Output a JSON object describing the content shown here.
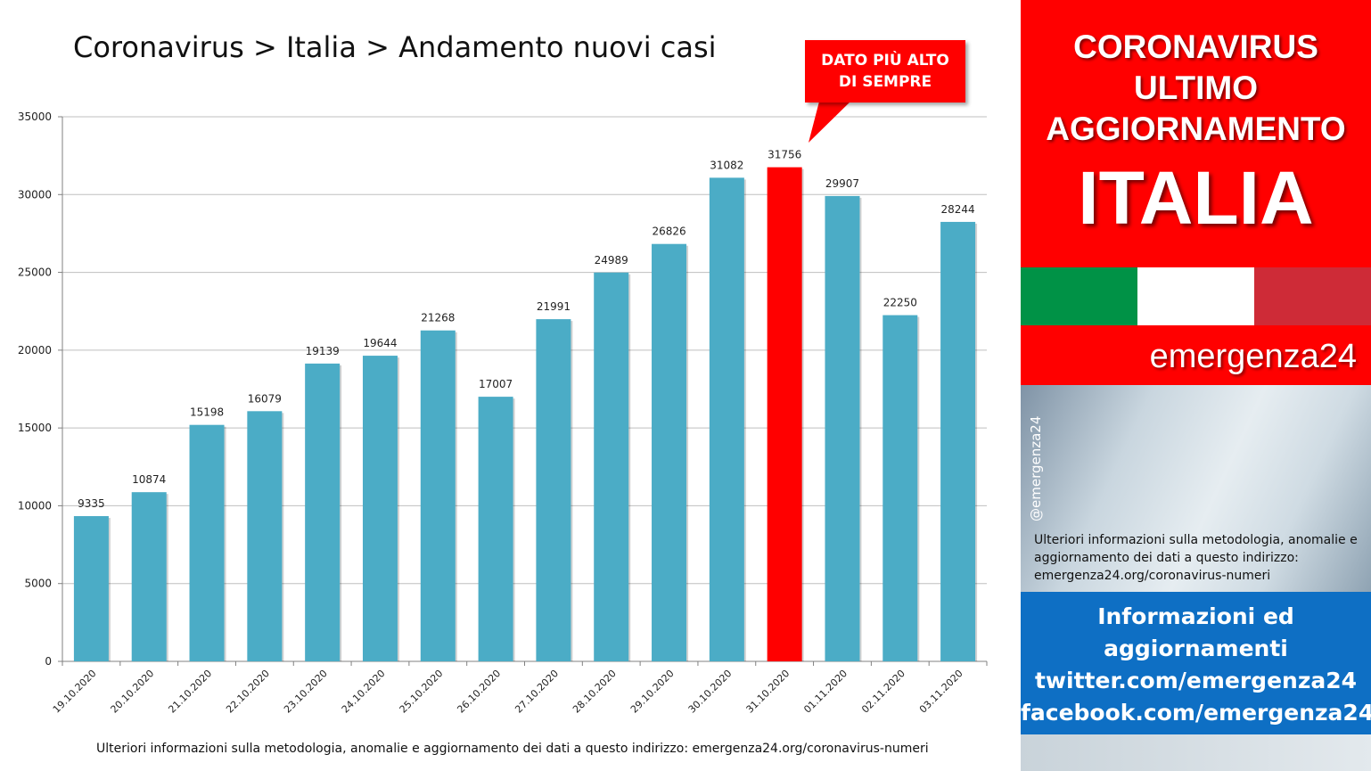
{
  "title": "Coronavirus > Italia > Andamento nuovi casi",
  "callout": {
    "line1": "DATO PIÙ ALTO",
    "line2": "DI SEMPRE"
  },
  "footnote": "Ulteriori informazioni sulla metodologia, anomalie e aggiornamento dei dati a questo indirizzo: emergenza24.org/coronavirus-numeri",
  "chart_data": {
    "type": "bar",
    "categories": [
      "19.10.2020",
      "20.10.2020",
      "21.10.2020",
      "22.10.2020",
      "23.10.2020",
      "24.10.2020",
      "25.10.2020",
      "26.10.2020",
      "27.10.2020",
      "28.10.2020",
      "29.10.2020",
      "30.10.2020",
      "31.10.2020",
      "01.11.2020",
      "02.11.2020",
      "03.11.2020"
    ],
    "values": [
      9335,
      10874,
      15198,
      16079,
      19139,
      19644,
      21268,
      17007,
      21991,
      24989,
      26826,
      31082,
      31756,
      29907,
      22250,
      28244
    ],
    "highlight_category": "31.10.2020",
    "ylim": [
      0,
      35000
    ],
    "yticks": [
      0,
      5000,
      10000,
      15000,
      20000,
      25000,
      30000,
      35000
    ],
    "grid": true,
    "bar_color": "#4bacc6",
    "highlight_color": "#ff0000"
  },
  "panel": {
    "header_lines": [
      "CORONAVIRUS",
      "ULTIMO",
      "AGGIORNAMENTO"
    ],
    "country": "ITALIA",
    "brand": "emergenza24",
    "handle": "@emergenza24",
    "info": "Ulteriori informazioni sulla metodologia, anomalie e aggiornamento dei dati a questo indirizzo: emergenza24.org/coronavirus-numeri",
    "social_lines": [
      "Informazioni ed",
      "aggiornamenti",
      "twitter.com/emergenza24",
      "facebook.com/emergenza24"
    ],
    "colors": {
      "red": "#ff0000",
      "blue": "#0e6fc4",
      "flag_green": "#009246",
      "flag_white": "#ffffff",
      "flag_red": "#ce2b37"
    }
  }
}
